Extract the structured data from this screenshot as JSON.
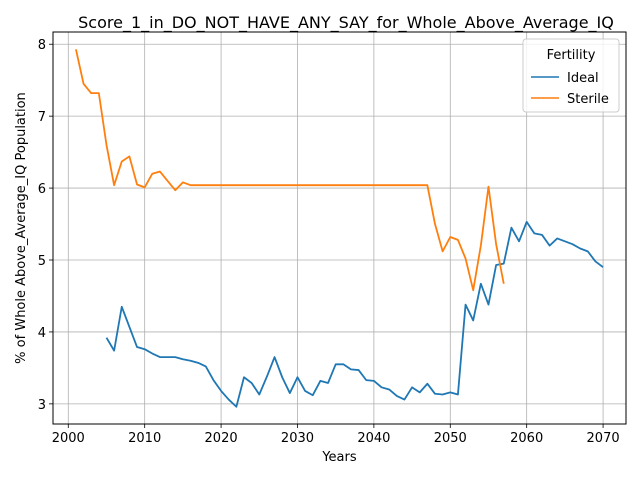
{
  "chart_data": {
    "type": "line",
    "title": "Score_1_in_DO_NOT_HAVE_ANY_SAY_for_Whole_Above_Average_IQ",
    "xlabel": "Years",
    "ylabel": "% of Whole Above_Average_IQ Population",
    "xlim": [
      1998,
      2073
    ],
    "ylim": [
      2.72,
      8.17
    ],
    "xticks": [
      2000,
      2010,
      2020,
      2030,
      2040,
      2050,
      2060,
      2070
    ],
    "yticks": [
      3,
      4,
      5,
      6,
      7,
      8
    ],
    "grid": true,
    "legend": {
      "title": "Fertility",
      "position": "top-right"
    },
    "series": [
      {
        "name": "Ideal",
        "color": "#1f77b4",
        "x": [
          2005,
          2006,
          2007,
          2008,
          2009,
          2010,
          2011,
          2012,
          2013,
          2014,
          2015,
          2016,
          2017,
          2018,
          2019,
          2020,
          2021,
          2022,
          2023,
          2024,
          2025,
          2026,
          2027,
          2028,
          2029,
          2030,
          2031,
          2032,
          2033,
          2034,
          2035,
          2036,
          2037,
          2038,
          2039,
          2040,
          2041,
          2042,
          2043,
          2044,
          2045,
          2046,
          2047,
          2048,
          2049,
          2050,
          2051,
          2052,
          2053,
          2054,
          2055,
          2056,
          2057,
          2058,
          2059,
          2060,
          2061,
          2062,
          2063,
          2064,
          2065,
          2066,
          2067,
          2068,
          2069,
          2070
        ],
        "y": [
          3.92,
          3.74,
          4.35,
          4.07,
          3.79,
          3.76,
          3.7,
          3.65,
          3.65,
          3.65,
          3.62,
          3.6,
          3.57,
          3.52,
          3.33,
          3.18,
          3.06,
          2.96,
          3.37,
          3.29,
          3.13,
          3.38,
          3.65,
          3.37,
          3.15,
          3.37,
          3.18,
          3.12,
          3.32,
          3.29,
          3.55,
          3.55,
          3.48,
          3.47,
          3.33,
          3.32,
          3.23,
          3.2,
          3.11,
          3.06,
          3.23,
          3.16,
          3.28,
          3.14,
          3.13,
          3.16,
          3.13,
          4.38,
          4.16,
          4.67,
          4.38,
          4.93,
          4.95,
          5.45,
          5.26,
          5.53,
          5.37,
          5.35,
          5.2,
          5.3,
          5.26,
          5.22,
          5.16,
          5.12,
          4.98,
          4.9
        ]
      },
      {
        "name": "Sterile",
        "color": "#ff7f0e",
        "x": [
          2001,
          2002,
          2003,
          2004,
          2005,
          2006,
          2007,
          2008,
          2009,
          2010,
          2011,
          2012,
          2013,
          2014,
          2015,
          2016,
          2017,
          2018,
          2019,
          2020,
          2021,
          2022,
          2023,
          2024,
          2025,
          2026,
          2027,
          2028,
          2029,
          2030,
          2031,
          2032,
          2033,
          2034,
          2035,
          2036,
          2037,
          2038,
          2039,
          2040,
          2041,
          2042,
          2043,
          2044,
          2045,
          2046,
          2047,
          2048,
          2049,
          2050,
          2051,
          2052,
          2053,
          2054,
          2055,
          2056,
          2057
        ],
        "y": [
          7.93,
          7.45,
          7.32,
          7.32,
          6.6,
          6.04,
          6.37,
          6.44,
          6.05,
          6.01,
          6.2,
          6.23,
          6.1,
          5.97,
          6.08,
          6.04,
          6.04,
          6.04,
          6.04,
          6.04,
          6.04,
          6.04,
          6.04,
          6.04,
          6.04,
          6.04,
          6.04,
          6.04,
          6.04,
          6.04,
          6.04,
          6.04,
          6.04,
          6.04,
          6.04,
          6.04,
          6.04,
          6.04,
          6.04,
          6.04,
          6.04,
          6.04,
          6.04,
          6.04,
          6.04,
          6.04,
          6.04,
          5.5,
          5.12,
          5.32,
          5.28,
          5.02,
          4.58,
          5.2,
          6.02,
          5.22,
          4.67
        ]
      }
    ]
  }
}
